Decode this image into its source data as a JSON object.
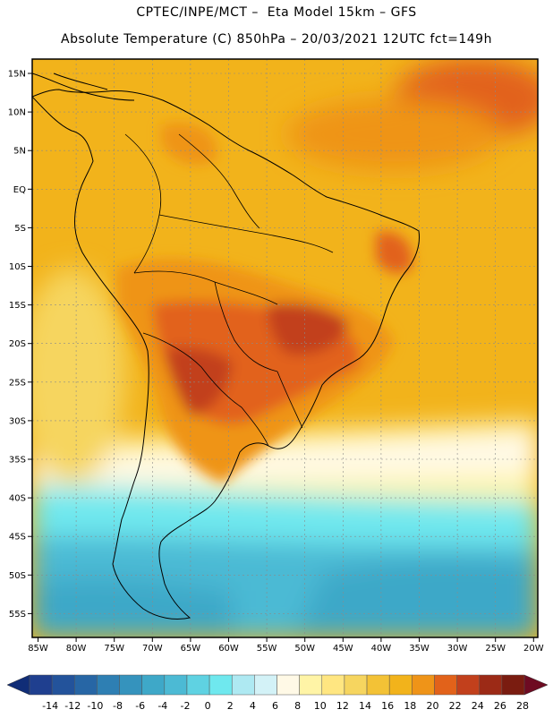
{
  "header": {
    "title_line1": "CPTEC/INPE/MCT –  Eta Model 15km – GFS",
    "title_line2": "Absolute Temperature (C) 850hPa – 20/03/2021 12UTC fct=149h"
  },
  "map": {
    "lon_labels": [
      "85W",
      "80W",
      "75W",
      "70W",
      "65W",
      "60W",
      "55W",
      "50W",
      "45W",
      "40W",
      "35W",
      "30W",
      "25W",
      "20W"
    ],
    "lat_labels": [
      "15N",
      "10N",
      "5N",
      "EQ",
      "5S",
      "10S",
      "15S",
      "20S",
      "25S",
      "30S",
      "35S",
      "40S",
      "45S",
      "50S",
      "55S"
    ]
  },
  "colorbar": {
    "labels": [
      "-14",
      "-12",
      "-10",
      "-8",
      "-6",
      "-4",
      "-2",
      "0",
      "2",
      "4",
      "6",
      "8",
      "10",
      "12",
      "14",
      "16",
      "18",
      "20",
      "22",
      "24",
      "26",
      "28"
    ],
    "colors": [
      "#1f3f8f",
      "#23539b",
      "#2766a5",
      "#2e7fb3",
      "#3593bd",
      "#3ea8c8",
      "#4cbad4",
      "#5fd2e2",
      "#6fe8ee",
      "#aee9f2",
      "#d3f2f7",
      "#fff9e6",
      "#fff4a6",
      "#ffe681",
      "#f6d55f",
      "#f3c236",
      "#f2b31b",
      "#ef9418",
      "#e2621a",
      "#c2401c",
      "#9c2a16",
      "#7a1c10"
    ],
    "low_arrow_color": "#102d77",
    "high_arrow_color": "#6e0b22"
  }
}
